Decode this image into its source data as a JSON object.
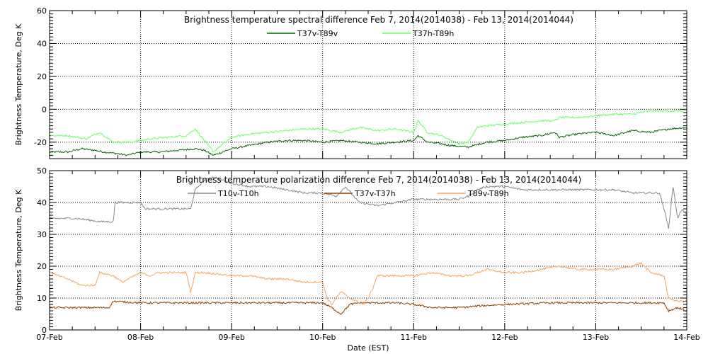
{
  "chart_data": [
    {
      "type": "line",
      "title": "Brightness temperature spectral difference    Feb  7, 2014(2014038) - Feb 13, 2014(2014044)",
      "ylabel": "Brightness Temperature, Deg K",
      "xlabel": "",
      "ylim": [
        -30,
        60
      ],
      "yticks": [
        -20,
        0,
        20,
        40,
        60
      ],
      "grid": true,
      "legend": "top-center",
      "x_unit": "days since Feb 7, 2014 00:00 EST",
      "series": [
        {
          "name": "T37v-T89v",
          "color": "#006400",
          "x": [
            0,
            0.2,
            0.35,
            0.5,
            0.6,
            0.75,
            0.85,
            1.0,
            1.2,
            1.4,
            1.6,
            1.7,
            1.8,
            2.0,
            2.2,
            2.4,
            2.6,
            2.8,
            3.0,
            3.2,
            3.4,
            3.6,
            3.8,
            4.0,
            4.05,
            4.15,
            4.3,
            4.4,
            4.6,
            4.8,
            5.0,
            5.2,
            5.4,
            5.55,
            5.6,
            5.8,
            6.0,
            6.2,
            6.4,
            6.6,
            6.8,
            7.0
          ],
          "values": [
            -26,
            -26,
            -24,
            -25,
            -26,
            -27,
            -28,
            -26,
            -26,
            -25,
            -24,
            -25,
            -28,
            -24,
            -22,
            -20,
            -19,
            -19,
            -20,
            -19,
            -20,
            -21,
            -20,
            -19,
            -16,
            -20,
            -21,
            -22,
            -23,
            -20,
            -19,
            -17,
            -16,
            -14,
            -17,
            -15,
            -14,
            -16,
            -13,
            -14,
            -12,
            -11
          ]
        },
        {
          "name": "T37h-T89h",
          "color": "#66ff66",
          "x": [
            0,
            0.2,
            0.4,
            0.55,
            0.7,
            0.9,
            1.1,
            1.3,
            1.5,
            1.6,
            1.7,
            1.8,
            2.0,
            2.2,
            2.4,
            2.6,
            2.8,
            3.0,
            3.2,
            3.4,
            3.6,
            3.8,
            4.0,
            4.05,
            4.15,
            4.3,
            4.5,
            4.6,
            4.7,
            4.8,
            5.0,
            5.2,
            5.4,
            5.55,
            5.6,
            5.8,
            6.0,
            6.2,
            6.4,
            6.6,
            6.8,
            7.0
          ],
          "values": [
            -16,
            -16,
            -18,
            -14,
            -20,
            -20,
            -18,
            -17,
            -16,
            -12,
            -19,
            -26,
            -17,
            -15,
            -14,
            -13,
            -12,
            -12,
            -14,
            -11,
            -13,
            -12,
            -14,
            -7,
            -14,
            -16,
            -21,
            -20,
            -11,
            -10,
            -9,
            -8,
            -7,
            -7,
            -5,
            -5,
            -4,
            -3,
            -3,
            -1,
            -1,
            -1
          ]
        }
      ]
    },
    {
      "type": "line",
      "title": "Brightness temperature polarization difference    Feb  7, 2014(2014038) - Feb 13, 2014(2014044)",
      "ylabel": "Brightness Temperature, Deg K",
      "xlabel": "Date (EST)",
      "ylim": [
        0,
        50
      ],
      "yticks": [
        0,
        10,
        20,
        30,
        40,
        50
      ],
      "xticks": [
        "07-Feb",
        "08-Feb",
        "09-Feb",
        "10-Feb",
        "11-Feb",
        "12-Feb",
        "13-Feb",
        "14-Feb"
      ],
      "grid": true,
      "legend": "top-center",
      "series": [
        {
          "name": "T10v-T10h",
          "color": "#888888",
          "x": [
            0,
            0.3,
            0.55,
            0.7,
            0.72,
            0.9,
            1.0,
            1.05,
            1.2,
            1.4,
            1.5,
            1.55,
            1.6,
            1.7,
            1.8,
            2.0,
            2.2,
            2.4,
            2.6,
            2.8,
            3.0,
            3.15,
            3.25,
            3.4,
            3.6,
            3.8,
            4.0,
            4.2,
            4.4,
            4.5,
            4.6,
            4.7,
            4.8,
            5.0,
            5.2,
            5.4,
            5.6,
            5.8,
            6.0,
            6.2,
            6.4,
            6.6,
            6.7,
            6.75,
            6.8,
            6.85,
            6.9,
            6.95,
            7.0
          ],
          "values": [
            35,
            35,
            34,
            34,
            40,
            40,
            40,
            38,
            38,
            38,
            38,
            38,
            44,
            47,
            48,
            46,
            45,
            45,
            44,
            43,
            43,
            42,
            45,
            40,
            39,
            40,
            41,
            41,
            41,
            41,
            42,
            44,
            45,
            45,
            44,
            44,
            44,
            44,
            44,
            44,
            43,
            43,
            43,
            38,
            32,
            45,
            35,
            38,
            36
          ]
        },
        {
          "name": "T37v-T37h",
          "color": "#8b4000",
          "x": [
            0,
            0.5,
            0.65,
            0.7,
            1.0,
            1.5,
            1.7,
            2.0,
            2.5,
            3.0,
            3.1,
            3.2,
            3.3,
            3.4,
            3.6,
            3.8,
            4.0,
            4.2,
            4.5,
            4.7,
            5.0,
            5.5,
            6.0,
            6.5,
            6.75,
            6.8,
            6.9,
            7.0
          ],
          "values": [
            7,
            7,
            7,
            9,
            8.5,
            8.5,
            8.5,
            8.5,
            8.5,
            8.5,
            7,
            5,
            8,
            8.5,
            8.5,
            8.5,
            8,
            7,
            7,
            7.5,
            8,
            8.5,
            8.5,
            8.5,
            8.5,
            6,
            7,
            6
          ]
        },
        {
          "name": "T89v-T89h",
          "color": "#f4a460",
          "x": [
            0,
            0.2,
            0.35,
            0.5,
            0.55,
            0.7,
            0.8,
            1.0,
            1.1,
            1.2,
            1.5,
            1.55,
            1.6,
            1.7,
            2.0,
            2.2,
            2.4,
            2.6,
            2.8,
            3.0,
            3.05,
            3.1,
            3.2,
            3.3,
            3.45,
            3.5,
            3.55,
            3.6,
            3.8,
            4.0,
            4.2,
            4.4,
            4.5,
            4.6,
            4.8,
            5.0,
            5.2,
            5.4,
            5.6,
            5.8,
            6.0,
            6.2,
            6.4,
            6.5,
            6.6,
            6.75,
            6.8,
            6.9,
            7.0
          ],
          "values": [
            18,
            16,
            14,
            14,
            18,
            17,
            15,
            18,
            17,
            18,
            18,
            12,
            18,
            18,
            17,
            17,
            16,
            16,
            15,
            15,
            10,
            8,
            12,
            10,
            8,
            10,
            13,
            17,
            17,
            17,
            18,
            17,
            17,
            17,
            19,
            18,
            18,
            19,
            20,
            19,
            19,
            19,
            20,
            21,
            18,
            17,
            10,
            9,
            9
          ]
        }
      ]
    }
  ]
}
